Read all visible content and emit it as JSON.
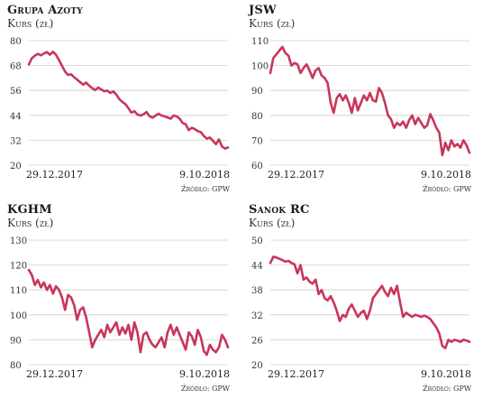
{
  "chart_data": [
    {
      "type": "line",
      "title": "Grupa Azoty",
      "subtitle": "Kurs (zł)",
      "ylim": [
        20,
        80
      ],
      "yticks": [
        20,
        32,
        44,
        56,
        68,
        80
      ],
      "x_start_label": "29.12.2017",
      "x_end_label": "9.10.2018",
      "source": "Źródło: GPW",
      "color": "#c8365a",
      "grid": true,
      "series": [
        {
          "values": [
            68.5,
            71.5,
            72.8,
            73.6,
            72.9,
            73.8,
            74.5,
            73.2,
            74.6,
            73.2,
            70.6,
            67.9,
            65.1,
            63.5,
            63.8,
            62.4,
            61.2,
            60.0,
            58.8,
            59.8,
            58.3,
            57.1,
            56.2,
            57.4,
            56.5,
            55.6,
            55.9,
            54.8,
            55.5,
            54.0,
            51.8,
            50.5,
            49.4,
            47.5,
            45.3,
            46.0,
            44.4,
            43.9,
            44.5,
            45.6,
            43.6,
            42.9,
            43.9,
            44.8,
            43.9,
            43.5,
            43.0,
            42.4,
            43.9,
            43.5,
            42.4,
            40.3,
            39.7,
            36.9,
            38.0,
            37.4,
            36.4,
            35.9,
            34.1,
            32.8,
            33.3,
            31.8,
            30.1,
            32.4,
            29.0,
            28.0,
            28.5
          ]
        }
      ]
    },
    {
      "type": "line",
      "title": "JSW",
      "subtitle": "Kurs (zł)",
      "ylim": [
        60,
        110
      ],
      "yticks": [
        60,
        70,
        80,
        90,
        100,
        110
      ],
      "x_start_label": "29.12.2017",
      "x_end_label": "9.10.2018",
      "source": "Źródło: GPW",
      "color": "#c8365a",
      "grid": true,
      "series": [
        {
          "values": [
            97.0,
            103.0,
            104.5,
            106.0,
            107.5,
            105.0,
            104.0,
            100.0,
            101.0,
            100.5,
            97.0,
            99.0,
            100.5,
            98.0,
            95.0,
            98.0,
            99.0,
            96.0,
            95.0,
            93.0,
            85.0,
            81.0,
            87.0,
            88.5,
            86.0,
            88.0,
            85.0,
            81.0,
            87.0,
            82.0,
            85.0,
            88.0,
            86.0,
            89.0,
            86.0,
            85.5,
            91.0,
            89.0,
            85.0,
            80.0,
            78.5,
            75.0,
            77.0,
            76.0,
            77.5,
            75.0,
            78.0,
            80.0,
            76.5,
            79.0,
            77.0,
            75.0,
            76.0,
            80.5,
            78.0,
            75.0,
            73.0,
            64.0,
            69.0,
            66.0,
            70.0,
            67.5,
            68.5,
            67.0,
            70.0,
            68.0,
            65.0
          ]
        }
      ]
    },
    {
      "type": "line",
      "title": "KGHM",
      "subtitle": "Kurs (zł)",
      "ylim": [
        80,
        130
      ],
      "yticks": [
        80,
        90,
        100,
        110,
        120,
        130
      ],
      "x_start_label": "29.12.2017",
      "x_end_label": "9.10.2018",
      "source": "Źródło: GPW",
      "color": "#c8365a",
      "grid": true,
      "series": [
        {
          "values": [
            118.0,
            116.0,
            112.0,
            114.0,
            111.0,
            113.0,
            110.0,
            112.0,
            108.5,
            111.5,
            110.0,
            107.0,
            102.0,
            108.0,
            107.0,
            104.0,
            98.0,
            102.0,
            103.0,
            99.0,
            93.0,
            87.0,
            90.0,
            92.0,
            94.0,
            91.0,
            96.0,
            93.0,
            95.0,
            97.0,
            92.0,
            95.0,
            92.5,
            96.0,
            90.0,
            97.0,
            93.0,
            85.0,
            92.0,
            93.0,
            90.0,
            88.0,
            87.0,
            89.0,
            91.0,
            87.0,
            93.0,
            96.0,
            92.0,
            95.0,
            92.0,
            89.0,
            86.0,
            93.0,
            91.5,
            88.0,
            94.0,
            91.0,
            85.5,
            84.0,
            88.0,
            86.0,
            85.0,
            87.0,
            92.0,
            90.0,
            87.0
          ]
        }
      ]
    },
    {
      "type": "line",
      "title": "Sanok RC",
      "subtitle": "Kurs (zł)",
      "ylim": [
        20,
        50
      ],
      "yticks": [
        20,
        26,
        32,
        38,
        44,
        50
      ],
      "x_start_label": "29.12.2017",
      "x_end_label": "9.10.2018",
      "source": "Źródło: GPW",
      "color": "#c8365a",
      "grid": true,
      "series": [
        {
          "values": [
            44.5,
            46.0,
            45.8,
            45.5,
            45.2,
            44.8,
            45.0,
            44.5,
            44.2,
            42.0,
            44.0,
            40.5,
            41.0,
            40.0,
            39.5,
            40.5,
            37.0,
            38.0,
            36.0,
            35.5,
            36.5,
            35.0,
            33.0,
            30.5,
            32.0,
            31.5,
            33.5,
            34.5,
            33.0,
            31.5,
            32.5,
            33.0,
            31.0,
            33.0,
            36.0,
            37.0,
            38.0,
            39.0,
            37.5,
            36.5,
            38.5,
            37.0,
            39.0,
            35.0,
            31.5,
            32.5,
            32.0,
            31.5,
            32.0,
            31.8,
            31.5,
            31.8,
            31.5,
            31.0,
            30.0,
            29.0,
            27.5,
            24.5,
            24.0,
            26.0,
            25.5,
            26.0,
            25.8,
            25.5,
            26.0,
            25.8,
            25.5
          ]
        }
      ]
    }
  ]
}
